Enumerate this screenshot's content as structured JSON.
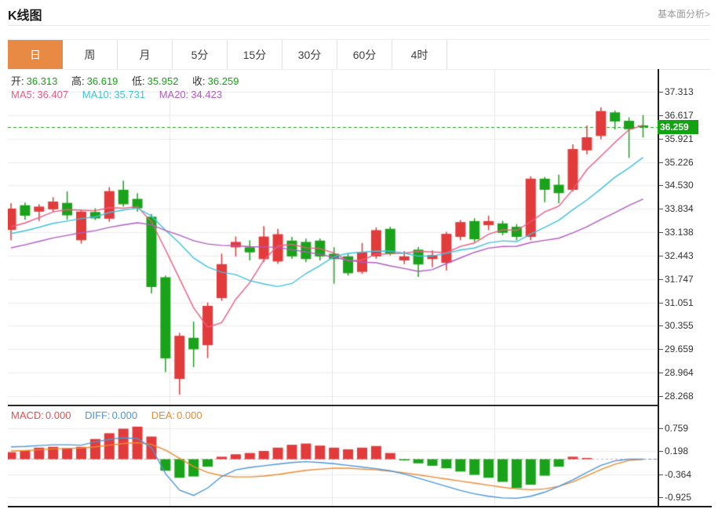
{
  "page": {
    "title": "K线图",
    "more_link": "基本面分析>"
  },
  "tabs": {
    "items": [
      "日",
      "周",
      "月",
      "5分",
      "15分",
      "30分",
      "60分",
      "4时"
    ],
    "active_index": 0
  },
  "readout": {
    "open_label": "开:",
    "open_value": "36.313",
    "high_label": "高:",
    "high_value": "36.619",
    "low_label": "低:",
    "low_value": "35.952",
    "close_label": "收:",
    "close_value": "36.259",
    "ma5_label": "MA5:",
    "ma5_value": "36.407",
    "ma10_label": "MA10:",
    "ma10_value": "35.731",
    "ma20_label": "MA20:",
    "ma20_value": "34.423"
  },
  "macd_readout": {
    "macd_label": "MACD:",
    "macd_value": "0.000",
    "diff_label": "DIFF:",
    "diff_value": "0.000",
    "dea_label": "DEA:",
    "dea_value": "0.000"
  },
  "colors": {
    "accent_orange": "#e98a44",
    "candle_up_red": "#e23b3b",
    "candle_down_green": "#1aa31a",
    "value_green": "#17a317",
    "price_badge_bg": "#12a312",
    "price_line_green": "#1aa31a",
    "ma5_pink": "#ee5b82",
    "ma10_cyan": "#3ec3dd",
    "ma20_purple": "#b25bc4",
    "macd_label_red": "#e0524e",
    "diff_blue": "#4a97dc",
    "dea_orange": "#f08a2e"
  },
  "chart_data": [
    {
      "type": "candlestick",
      "title": "K线图 daily candles with MA5/MA10/MA20 overlays",
      "ylim": [
        28.1,
        37.55
      ],
      "y_ticks": [
        "37.313",
        "36.617",
        "35.921",
        "35.226",
        "34.530",
        "33.834",
        "33.138",
        "32.443",
        "31.747",
        "31.051",
        "30.355",
        "29.659",
        "28.964",
        "28.268"
      ],
      "current_price": 36.259,
      "current_price_label": "36.259",
      "ma_periods": [
        5,
        10,
        20
      ],
      "ma_seed": [
        31.8,
        31.9,
        32.0,
        32.1,
        32.2,
        32.3,
        32.4,
        32.5,
        32.6,
        32.7,
        32.8,
        32.85,
        32.9,
        32.95,
        33.0,
        33.05,
        33.1,
        33.2,
        33.3
      ],
      "ohlc": [
        [
          33.21,
          34.0,
          32.9,
          33.84
        ],
        [
          33.94,
          34.02,
          33.51,
          33.63
        ],
        [
          33.75,
          33.97,
          33.47,
          33.9
        ],
        [
          33.82,
          34.18,
          33.74,
          34.05
        ],
        [
          34.01,
          34.35,
          33.51,
          33.64
        ],
        [
          32.9,
          33.8,
          32.8,
          33.75
        ],
        [
          33.74,
          33.85,
          33.5,
          33.55
        ],
        [
          33.54,
          34.48,
          33.45,
          34.36
        ],
        [
          34.4,
          34.67,
          33.9,
          33.97
        ],
        [
          34.13,
          34.3,
          33.75,
          33.85
        ],
        [
          33.6,
          33.68,
          31.32,
          31.51
        ],
        [
          31.8,
          31.85,
          28.98,
          29.39
        ],
        [
          28.78,
          30.15,
          28.31,
          30.06
        ],
        [
          30.0,
          30.48,
          29.13,
          29.66
        ],
        [
          29.78,
          31.05,
          29.4,
          30.95
        ],
        [
          31.18,
          32.5,
          31.1,
          32.19
        ],
        [
          32.69,
          33.01,
          32.42,
          32.85
        ],
        [
          32.69,
          32.9,
          32.3,
          32.54
        ],
        [
          32.34,
          33.32,
          32.25,
          33.01
        ],
        [
          32.27,
          33.24,
          32.2,
          33.08
        ],
        [
          32.89,
          33.0,
          32.35,
          32.42
        ],
        [
          32.85,
          32.95,
          32.25,
          32.34
        ],
        [
          32.89,
          32.95,
          32.3,
          32.42
        ],
        [
          32.5,
          32.69,
          31.61,
          32.34
        ],
        [
          32.42,
          32.5,
          31.85,
          31.92
        ],
        [
          31.96,
          32.82,
          31.9,
          32.54
        ],
        [
          32.42,
          33.28,
          32.35,
          33.2
        ],
        [
          33.24,
          33.3,
          32.45,
          32.5
        ],
        [
          32.3,
          32.58,
          32.19,
          32.42
        ],
        [
          32.62,
          32.7,
          31.81,
          32.18
        ],
        [
          32.34,
          32.6,
          32.1,
          32.46
        ],
        [
          32.23,
          33.15,
          32.0,
          33.09
        ],
        [
          33.0,
          33.5,
          32.9,
          33.44
        ],
        [
          33.47,
          33.55,
          32.85,
          32.93
        ],
        [
          33.35,
          33.63,
          33.2,
          33.47
        ],
        [
          33.4,
          33.48,
          33.05,
          33.12
        ],
        [
          33.3,
          33.38,
          32.9,
          33.0
        ],
        [
          33.0,
          34.8,
          32.9,
          34.73
        ],
        [
          34.73,
          34.78,
          34.03,
          34.4
        ],
        [
          34.55,
          34.85,
          34.0,
          34.3
        ],
        [
          34.4,
          35.75,
          34.35,
          35.61
        ],
        [
          35.57,
          36.31,
          35.45,
          35.96
        ],
        [
          36.0,
          36.85,
          35.9,
          36.74
        ],
        [
          36.7,
          36.75,
          36.19,
          36.43
        ],
        [
          36.45,
          36.55,
          35.35,
          36.2
        ],
        [
          36.313,
          36.619,
          35.952,
          36.259
        ]
      ]
    },
    {
      "type": "bar",
      "title": "MACD histogram with DIFF/DEA lines",
      "y_ticks": [
        "0.759",
        "0.198",
        "-0.364",
        "-0.925"
      ],
      "tick_values": [
        0.759,
        0.198,
        -0.364,
        -0.925
      ],
      "bars": [
        0.17,
        0.2,
        0.28,
        0.3,
        0.27,
        0.3,
        0.49,
        0.63,
        0.74,
        0.79,
        0.55,
        -0.28,
        -0.45,
        -0.42,
        -0.18,
        0.06,
        0.12,
        0.15,
        0.2,
        0.28,
        0.35,
        0.38,
        0.33,
        0.28,
        0.24,
        0.28,
        0.32,
        0.15,
        -0.03,
        -0.1,
        -0.16,
        -0.22,
        -0.3,
        -0.38,
        -0.45,
        -0.55,
        -0.7,
        -0.62,
        -0.4,
        -0.18,
        0.06,
        0.03,
        0.0,
        0.0,
        0.0,
        0.0
      ],
      "diff": [
        0.3,
        0.31,
        0.33,
        0.35,
        0.35,
        0.34,
        0.42,
        0.48,
        0.52,
        0.5,
        0.28,
        -0.35,
        -0.75,
        -0.88,
        -0.7,
        -0.42,
        -0.26,
        -0.2,
        -0.16,
        -0.12,
        -0.08,
        -0.06,
        -0.08,
        -0.11,
        -0.15,
        -0.19,
        -0.23,
        -0.28,
        -0.36,
        -0.46,
        -0.56,
        -0.66,
        -0.76,
        -0.84,
        -0.9,
        -0.94,
        -0.95,
        -0.9,
        -0.8,
        -0.66,
        -0.5,
        -0.32,
        -0.15,
        -0.04,
        0.0,
        0.0
      ],
      "dea": [
        0.2,
        0.21,
        0.23,
        0.25,
        0.26,
        0.27,
        0.3,
        0.34,
        0.38,
        0.4,
        0.36,
        0.22,
        0.02,
        -0.18,
        -0.32,
        -0.4,
        -0.43,
        -0.43,
        -0.41,
        -0.37,
        -0.32,
        -0.27,
        -0.24,
        -0.22,
        -0.22,
        -0.24,
        -0.26,
        -0.29,
        -0.33,
        -0.38,
        -0.43,
        -0.48,
        -0.53,
        -0.58,
        -0.63,
        -0.68,
        -0.72,
        -0.74,
        -0.72,
        -0.66,
        -0.55,
        -0.4,
        -0.25,
        -0.12,
        -0.03,
        0.0
      ]
    }
  ]
}
